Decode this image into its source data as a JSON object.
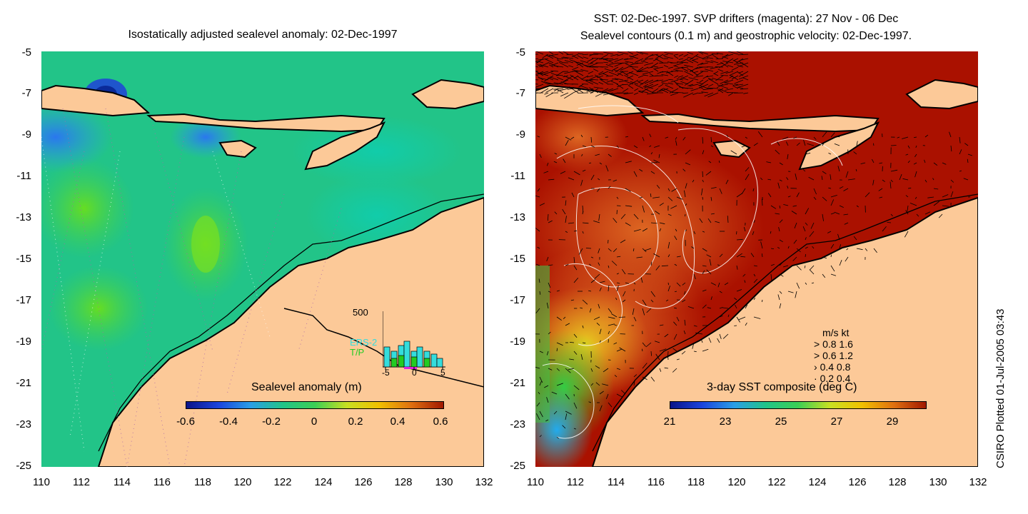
{
  "left_panel": {
    "title": "Isostatically adjusted sealevel anomaly: 02-Dec-1997",
    "colorbar_title": "Sealevel anomaly (m)",
    "colorbar_ticks": [
      "-0.6",
      "-0.4",
      "-0.2",
      "0",
      "0.2",
      "0.4",
      "0.6"
    ],
    "inset": {
      "ymax_label": "500",
      "series": [
        "ERS-2",
        "T/P"
      ],
      "series_colors": [
        "#33dddd",
        "#22cc22"
      ],
      "x_ticks": [
        "-5",
        "0",
        "5"
      ]
    }
  },
  "right_panel": {
    "title_line1": "SST: 02-Dec-1997. SVP drifters (magenta): 27 Nov - 06 Dec",
    "title_line2": "Sealevel contours (0.1 m) and geostrophic velocity: 02-Dec-1997.",
    "colorbar_title": "3-day SST composite (deg C)",
    "colorbar_ticks": [
      "21",
      "23",
      "25",
      "27",
      "29"
    ],
    "velocity_legend": {
      "header": "m/s  kt",
      "rows": [
        "0.8  1.6",
        "0.6  1.2",
        "0.4  0.8",
        "0.2  0.4"
      ]
    }
  },
  "y_axis": [
    "-5",
    "-7",
    "-9",
    "-11",
    "-13",
    "-15",
    "-17",
    "-19",
    "-21",
    "-23",
    "-25"
  ],
  "x_axis": [
    "110",
    "112",
    "114",
    "116",
    "118",
    "120",
    "122",
    "124",
    "126",
    "128",
    "130",
    "132"
  ],
  "credit": "CSIRO Plotted 01-Jul-2005 03:43",
  "colors": {
    "land": "#fcc998",
    "sealevel_background": "#22c488",
    "sst_background": "#aa1100",
    "coastline": "#000000"
  }
}
